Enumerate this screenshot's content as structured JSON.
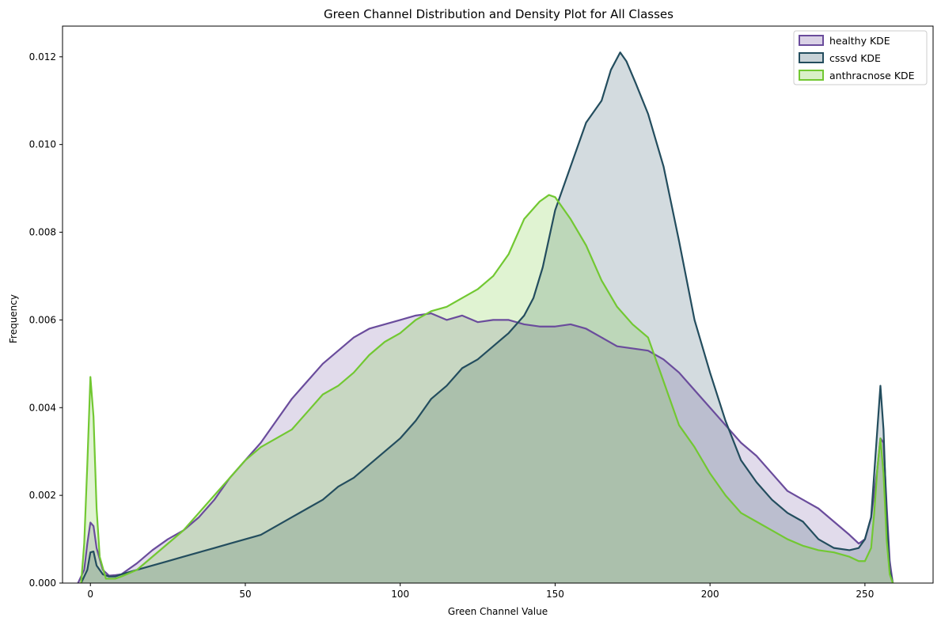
{
  "chart_data": {
    "type": "area",
    "title": "Green Channel Distribution and Density Plot for All Classes",
    "xlabel": "Green Channel Value",
    "ylabel": "Frequency",
    "xlim": [
      -9,
      272
    ],
    "ylim": [
      0,
      0.0127
    ],
    "xticks": [
      0,
      50,
      100,
      150,
      200,
      250
    ],
    "xtick_labels": [
      "0",
      "50",
      "100",
      "150",
      "200",
      "250"
    ],
    "yticks": [
      0,
      0.002,
      0.004,
      0.006,
      0.008,
      0.01,
      0.012
    ],
    "ytick_labels": [
      "0.000",
      "0.002",
      "0.004",
      "0.006",
      "0.008",
      "0.010",
      "0.012"
    ],
    "grid": false,
    "legend_position": "top-right",
    "series": [
      {
        "name": "healthy KDE",
        "color": "#6a4c9c",
        "fill": "#6a4c9c",
        "fill_opacity": 0.2,
        "points": [
          [
            -4,
            0
          ],
          [
            -2,
            0.0003
          ],
          [
            -1,
            0.0009
          ],
          [
            0,
            0.00138
          ],
          [
            1,
            0.0013
          ],
          [
            2,
            0.0008
          ],
          [
            4,
            0.0003
          ],
          [
            6,
            0.00017
          ],
          [
            8,
            0.00018
          ],
          [
            10,
            0.0002
          ],
          [
            15,
            0.00045
          ],
          [
            20,
            0.00075
          ],
          [
            25,
            0.001
          ],
          [
            30,
            0.0012
          ],
          [
            35,
            0.0015
          ],
          [
            40,
            0.0019
          ],
          [
            45,
            0.0024
          ],
          [
            50,
            0.0028
          ],
          [
            55,
            0.0032
          ],
          [
            60,
            0.0037
          ],
          [
            65,
            0.0042
          ],
          [
            70,
            0.0046
          ],
          [
            75,
            0.005
          ],
          [
            80,
            0.0053
          ],
          [
            85,
            0.0056
          ],
          [
            90,
            0.0058
          ],
          [
            95,
            0.0059
          ],
          [
            100,
            0.006
          ],
          [
            105,
            0.0061
          ],
          [
            110,
            0.00615
          ],
          [
            115,
            0.006
          ],
          [
            120,
            0.0061
          ],
          [
            125,
            0.00595
          ],
          [
            130,
            0.006
          ],
          [
            135,
            0.006
          ],
          [
            140,
            0.0059
          ],
          [
            145,
            0.00585
          ],
          [
            150,
            0.00585
          ],
          [
            155,
            0.0059
          ],
          [
            160,
            0.0058
          ],
          [
            165,
            0.0056
          ],
          [
            170,
            0.0054
          ],
          [
            175,
            0.00535
          ],
          [
            180,
            0.0053
          ],
          [
            185,
            0.0051
          ],
          [
            190,
            0.0048
          ],
          [
            195,
            0.0044
          ],
          [
            200,
            0.004
          ],
          [
            205,
            0.0036
          ],
          [
            210,
            0.0032
          ],
          [
            215,
            0.0029
          ],
          [
            220,
            0.0025
          ],
          [
            225,
            0.0021
          ],
          [
            230,
            0.0019
          ],
          [
            235,
            0.0017
          ],
          [
            240,
            0.0014
          ],
          [
            245,
            0.0011
          ],
          [
            248,
            0.0009
          ],
          [
            250,
            0.001
          ],
          [
            252,
            0.0015
          ],
          [
            254,
            0.0026
          ],
          [
            255,
            0.0033
          ],
          [
            256,
            0.0032
          ],
          [
            257,
            0.0018
          ],
          [
            258,
            0.0005
          ],
          [
            259,
            0
          ]
        ]
      },
      {
        "name": "cssvd KDE",
        "color": "#234d5e",
        "fill": "#234d5e",
        "fill_opacity": 0.2,
        "points": [
          [
            -3,
            0
          ],
          [
            -1,
            0.0003
          ],
          [
            0,
            0.0007
          ],
          [
            1,
            0.00072
          ],
          [
            2,
            0.0004
          ],
          [
            4,
            0.0002
          ],
          [
            6,
            0.00015
          ],
          [
            8,
            0.00015
          ],
          [
            10,
            0.0002
          ],
          [
            15,
            0.0003
          ],
          [
            20,
            0.0004
          ],
          [
            25,
            0.0005
          ],
          [
            30,
            0.0006
          ],
          [
            35,
            0.0007
          ],
          [
            40,
            0.0008
          ],
          [
            45,
            0.0009
          ],
          [
            50,
            0.001
          ],
          [
            55,
            0.0011
          ],
          [
            60,
            0.0013
          ],
          [
            65,
            0.0015
          ],
          [
            70,
            0.0017
          ],
          [
            75,
            0.0019
          ],
          [
            80,
            0.0022
          ],
          [
            85,
            0.0024
          ],
          [
            90,
            0.0027
          ],
          [
            95,
            0.003
          ],
          [
            100,
            0.0033
          ],
          [
            105,
            0.0037
          ],
          [
            110,
            0.0042
          ],
          [
            115,
            0.0045
          ],
          [
            120,
            0.0049
          ],
          [
            125,
            0.0051
          ],
          [
            130,
            0.0054
          ],
          [
            135,
            0.0057
          ],
          [
            140,
            0.0061
          ],
          [
            143,
            0.0065
          ],
          [
            146,
            0.0072
          ],
          [
            150,
            0.0085
          ],
          [
            155,
            0.0095
          ],
          [
            160,
            0.0105
          ],
          [
            165,
            0.011
          ],
          [
            168,
            0.0117
          ],
          [
            171,
            0.0121
          ],
          [
            173,
            0.0119
          ],
          [
            176,
            0.0114
          ],
          [
            180,
            0.0107
          ],
          [
            185,
            0.0095
          ],
          [
            190,
            0.0078
          ],
          [
            195,
            0.006
          ],
          [
            200,
            0.0048
          ],
          [
            205,
            0.0037
          ],
          [
            210,
            0.0028
          ],
          [
            215,
            0.0023
          ],
          [
            220,
            0.0019
          ],
          [
            225,
            0.0016
          ],
          [
            230,
            0.0014
          ],
          [
            235,
            0.001
          ],
          [
            240,
            0.0008
          ],
          [
            245,
            0.00075
          ],
          [
            248,
            0.0008
          ],
          [
            250,
            0.001
          ],
          [
            252,
            0.0015
          ],
          [
            253,
            0.0025
          ],
          [
            254,
            0.0035
          ],
          [
            255,
            0.0045
          ],
          [
            256,
            0.0035
          ],
          [
            257,
            0.0015
          ],
          [
            258,
            0.0003
          ],
          [
            259,
            0
          ]
        ]
      },
      {
        "name": "anthracnose KDE",
        "color": "#72c832",
        "fill": "#72c832",
        "fill_opacity": 0.22,
        "points": [
          [
            -3,
            0
          ],
          [
            -2,
            0.0009
          ],
          [
            -1,
            0.0027
          ],
          [
            0,
            0.0047
          ],
          [
            1,
            0.0038
          ],
          [
            2,
            0.0017
          ],
          [
            3,
            0.0006
          ],
          [
            5,
            0.0001
          ],
          [
            8,
            0.0001
          ],
          [
            10,
            0.00015
          ],
          [
            15,
            0.0003
          ],
          [
            20,
            0.0006
          ],
          [
            25,
            0.0009
          ],
          [
            30,
            0.0012
          ],
          [
            35,
            0.0016
          ],
          [
            40,
            0.002
          ],
          [
            45,
            0.0024
          ],
          [
            50,
            0.0028
          ],
          [
            55,
            0.0031
          ],
          [
            60,
            0.0033
          ],
          [
            65,
            0.0035
          ],
          [
            70,
            0.0039
          ],
          [
            75,
            0.0043
          ],
          [
            80,
            0.0045
          ],
          [
            85,
            0.0048
          ],
          [
            90,
            0.0052
          ],
          [
            95,
            0.0055
          ],
          [
            100,
            0.0057
          ],
          [
            105,
            0.006
          ],
          [
            110,
            0.0062
          ],
          [
            115,
            0.0063
          ],
          [
            120,
            0.0065
          ],
          [
            125,
            0.0067
          ],
          [
            130,
            0.007
          ],
          [
            135,
            0.0075
          ],
          [
            140,
            0.0083
          ],
          [
            145,
            0.0087
          ],
          [
            148,
            0.00885
          ],
          [
            150,
            0.0088
          ],
          [
            155,
            0.0083
          ],
          [
            160,
            0.0077
          ],
          [
            165,
            0.0069
          ],
          [
            170,
            0.0063
          ],
          [
            175,
            0.0059
          ],
          [
            180,
            0.0056
          ],
          [
            185,
            0.0046
          ],
          [
            190,
            0.0036
          ],
          [
            195,
            0.0031
          ],
          [
            200,
            0.0025
          ],
          [
            205,
            0.002
          ],
          [
            210,
            0.0016
          ],
          [
            215,
            0.0014
          ],
          [
            220,
            0.0012
          ],
          [
            225,
            0.001
          ],
          [
            230,
            0.00085
          ],
          [
            235,
            0.00075
          ],
          [
            240,
            0.0007
          ],
          [
            245,
            0.0006
          ],
          [
            248,
            0.0005
          ],
          [
            250,
            0.0005
          ],
          [
            252,
            0.0008
          ],
          [
            253,
            0.0016
          ],
          [
            254,
            0.0026
          ],
          [
            255,
            0.0033
          ],
          [
            256,
            0.0025
          ],
          [
            257,
            0.001
          ],
          [
            258,
            0.0002
          ],
          [
            259,
            0
          ]
        ]
      }
    ]
  }
}
